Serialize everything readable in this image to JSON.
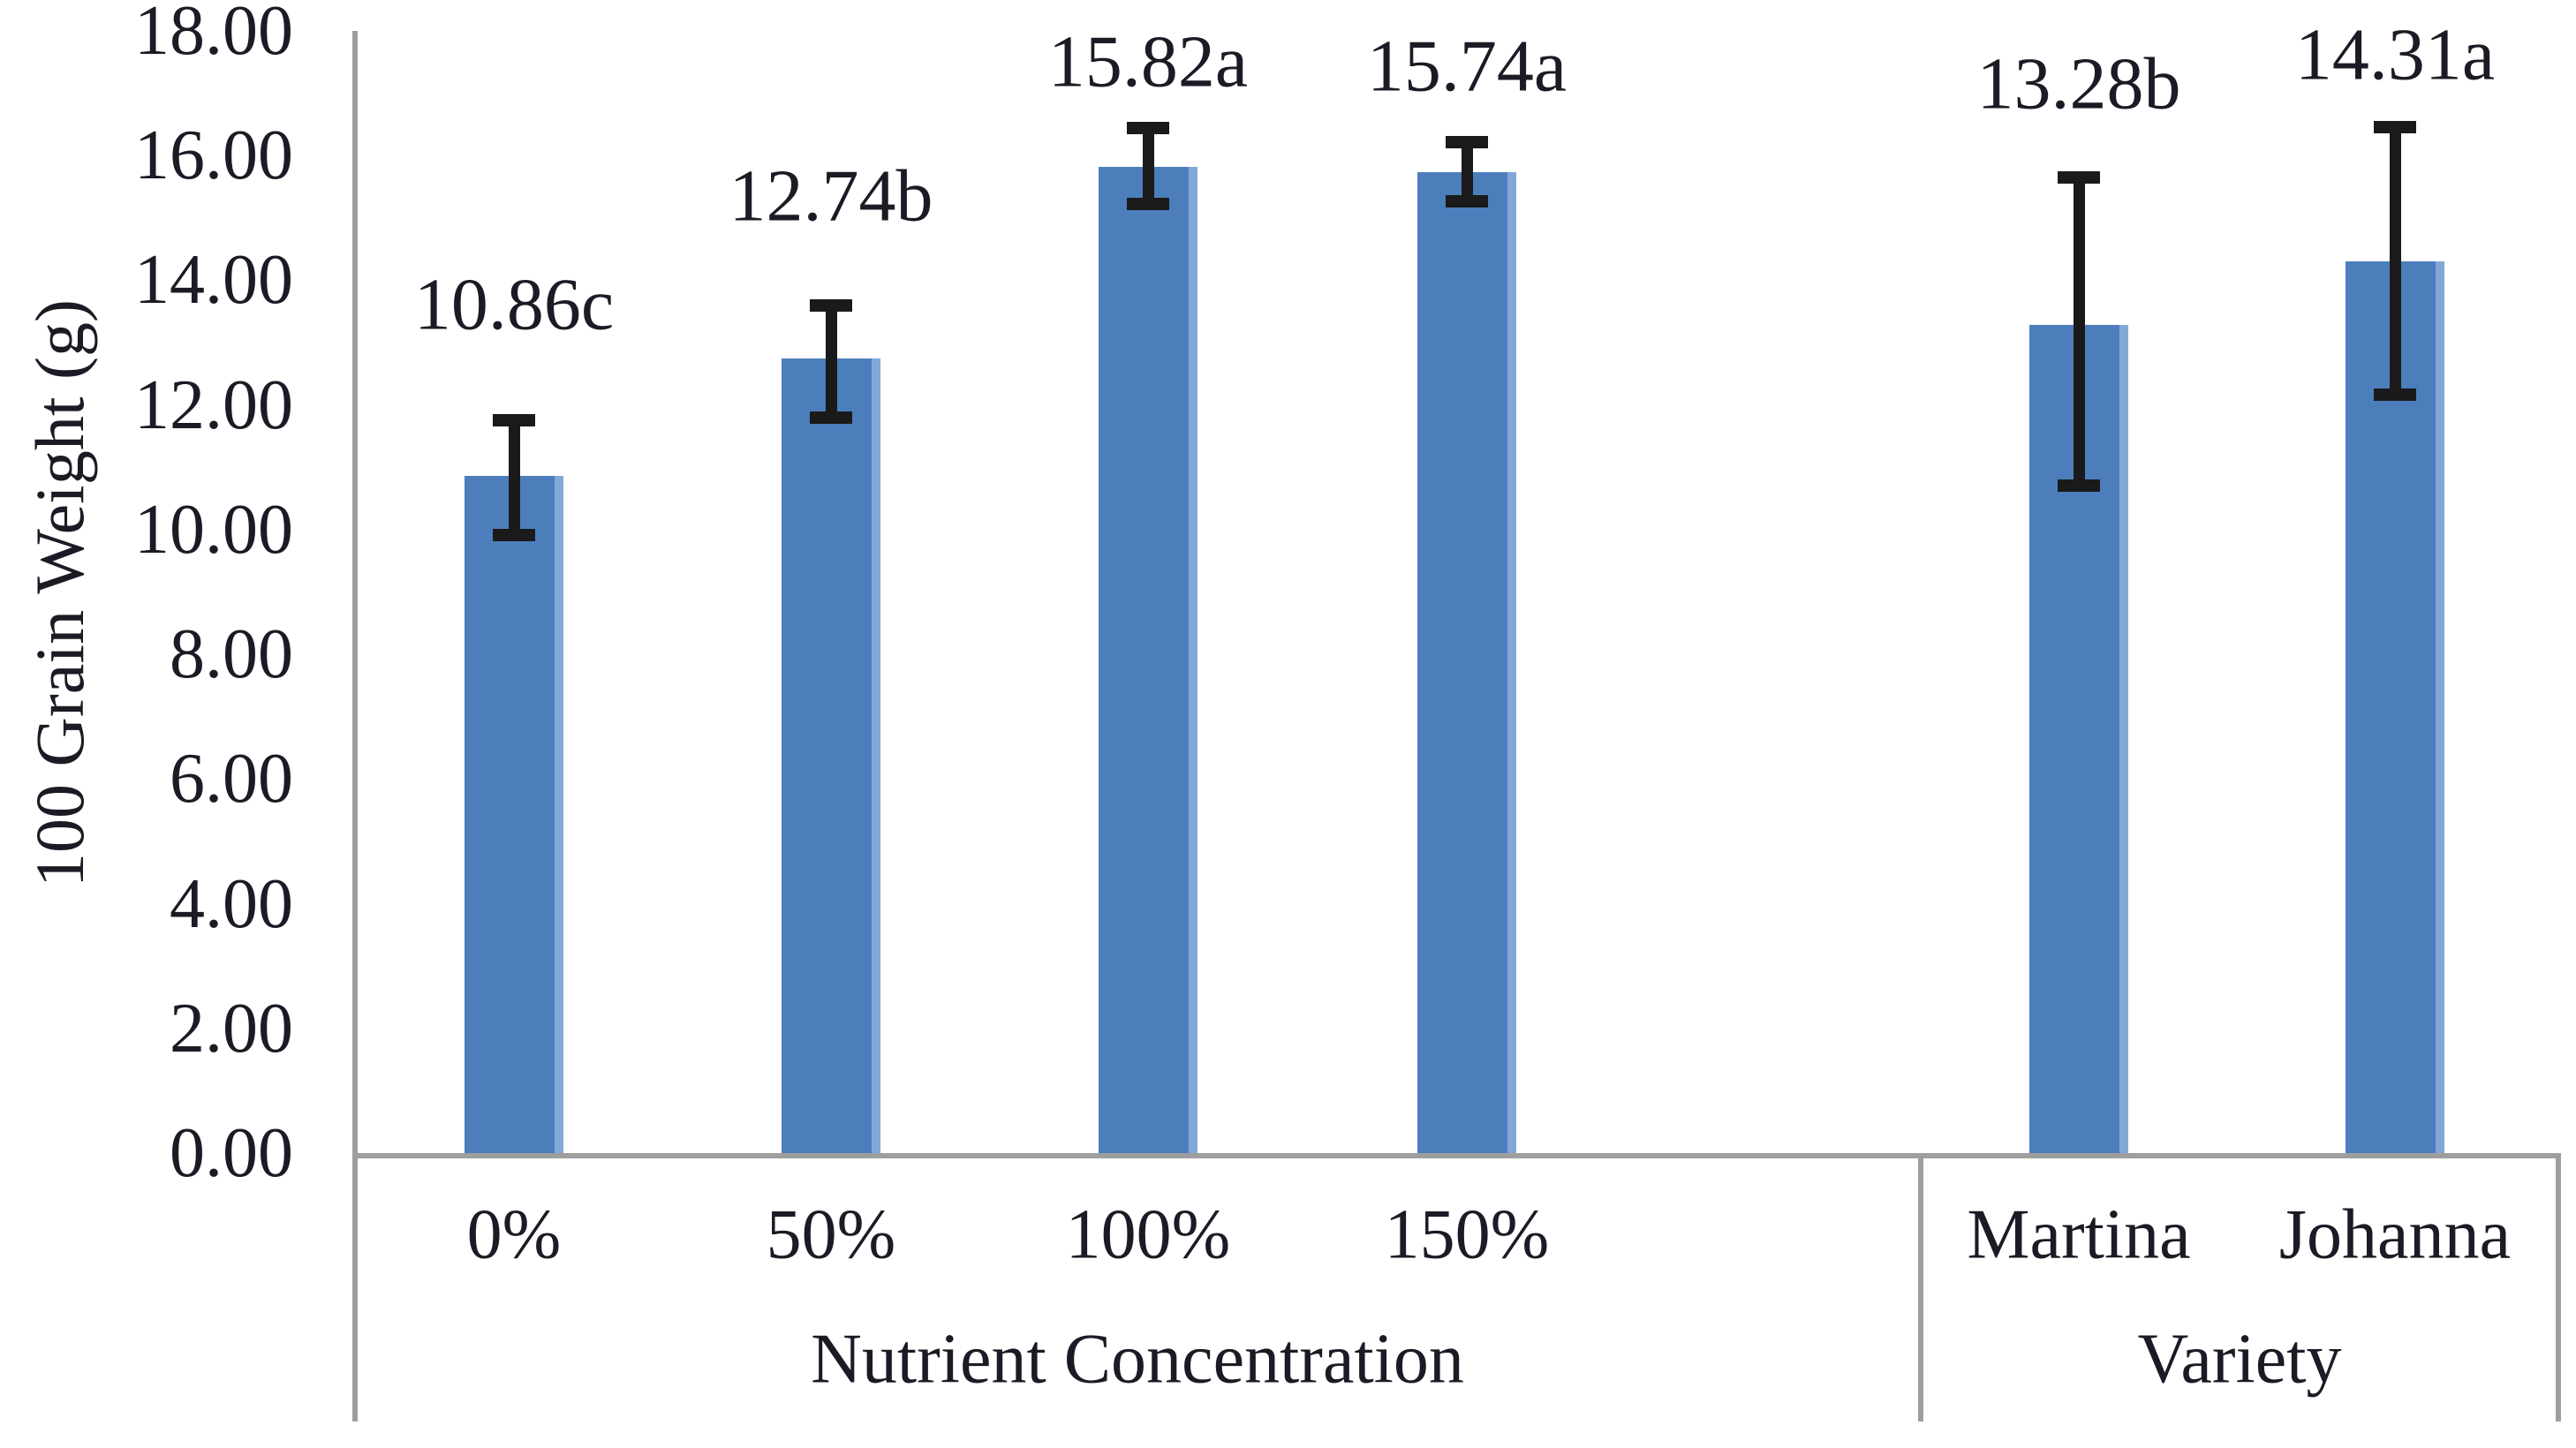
{
  "chart_data": {
    "type": "bar",
    "title": "",
    "xlabel": "",
    "ylabel": "100 Grain Weight (g)",
    "ylim": [
      0,
      18
    ],
    "ytick_step": 2,
    "ytick_labels": [
      "0.00",
      "2.00",
      "4.00",
      "6.00",
      "8.00",
      "10.00",
      "12.00",
      "14.00",
      "16.00",
      "18.00"
    ],
    "grid": false,
    "legend": "none",
    "bar_color": "#4d7ebc",
    "bar_edge_color": "#82a8d7",
    "error_bar_color": "#1a1a1a",
    "axis_color": "#9e9e9e",
    "text_color": "#1b1b26",
    "groups": [
      {
        "label": "Nutrient Concentration",
        "categories": [
          "0%",
          "50%",
          "100%",
          "150%"
        ]
      },
      {
        "label": "Variety",
        "categories": [
          "Martina",
          "Johanna"
        ]
      }
    ],
    "points": [
      {
        "group": "Nutrient Concentration",
        "category": "0%",
        "value": 10.86,
        "significance_letter": "c",
        "data_label": "10.86c",
        "error_plus": 0.9,
        "error_minus": 0.95
      },
      {
        "group": "Nutrient Concentration",
        "category": "50%",
        "value": 12.74,
        "significance_letter": "b",
        "data_label": "12.74b",
        "error_plus": 0.85,
        "error_minus": 0.95
      },
      {
        "group": "Nutrient Concentration",
        "category": "100%",
        "value": 15.82,
        "significance_letter": "a",
        "data_label": "15.82a",
        "error_plus": 0.62,
        "error_minus": 0.6
      },
      {
        "group": "Nutrient Concentration",
        "category": "150%",
        "value": 15.74,
        "significance_letter": "a",
        "data_label": "15.74a",
        "error_plus": 0.47,
        "error_minus": 0.48
      },
      {
        "group": "Variety",
        "category": "Martina",
        "value": 13.28,
        "significance_letter": "b",
        "data_label": "13.28b",
        "error_plus": 2.37,
        "error_minus": 2.58
      },
      {
        "group": "Variety",
        "category": "Johanna",
        "value": 14.31,
        "significance_letter": "a",
        "data_label": "14.31a",
        "error_plus": 2.15,
        "error_minus": 2.15
      }
    ]
  }
}
